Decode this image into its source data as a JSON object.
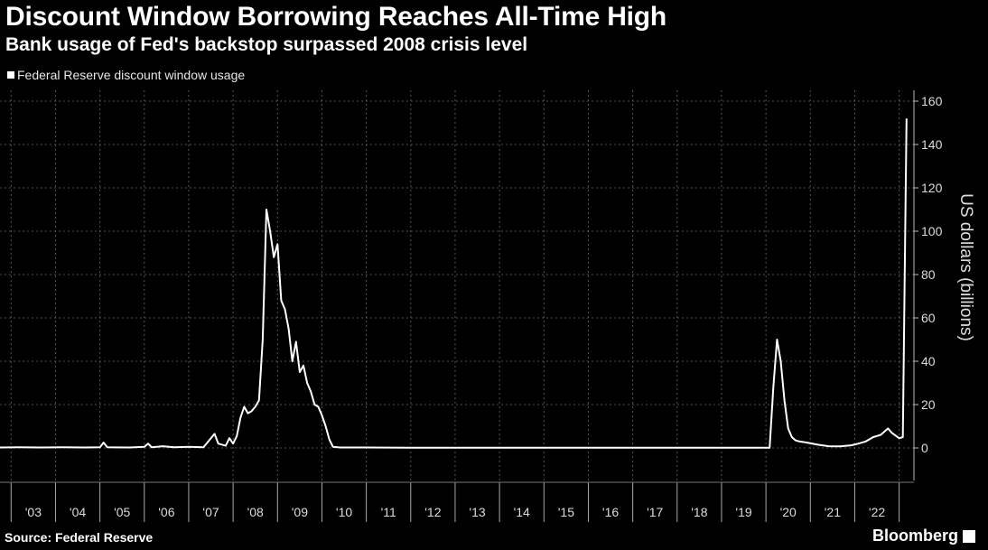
{
  "header": {
    "title": "Discount Window Borrowing Reaches All-Time High",
    "subtitle": "Bank usage of Fed's backstop surpassed 2008 crisis level"
  },
  "footer": {
    "source": "Source: Federal Reserve",
    "brand": "Bloomberg"
  },
  "chart_data": {
    "type": "line",
    "title": "Discount Window Borrowing Reaches All-Time High",
    "subtitle": "Bank usage of Fed's backstop surpassed 2008 crisis level",
    "ylabel": "US dollars (billions)",
    "xlabel": "",
    "ylim": [
      -15,
      165
    ],
    "xlim": [
      "2002-10",
      "2023-05"
    ],
    "yticks": [
      0,
      20,
      40,
      60,
      80,
      100,
      120,
      140,
      160
    ],
    "xtick_labels": [
      "'03",
      "'04",
      "'05",
      "'06",
      "'07",
      "'08",
      "'09",
      "'10",
      "'11",
      "'12",
      "'13",
      "'14",
      "'15",
      "'16",
      "'17",
      "'18",
      "'19",
      "'20",
      "'21",
      "'22"
    ],
    "xtick_years": [
      2003,
      2004,
      2005,
      2006,
      2007,
      2008,
      2009,
      2010,
      2011,
      2012,
      2013,
      2014,
      2015,
      2016,
      2017,
      2018,
      2019,
      2020,
      2021,
      2022
    ],
    "grid": true,
    "legend_position": "top-left",
    "colors": {
      "line": "#ffffff",
      "background": "#000000",
      "grid": "#555555"
    },
    "series": [
      {
        "name": "Federal Reserve discount window usage",
        "points": [
          [
            "2002-10",
            0.2
          ],
          [
            "2003-03",
            0.3
          ],
          [
            "2003-09",
            0.2
          ],
          [
            "2004-03",
            0.3
          ],
          [
            "2004-09",
            0.2
          ],
          [
            "2005-01",
            0.3
          ],
          [
            "2005-02",
            2.5
          ],
          [
            "2005-03",
            0.3
          ],
          [
            "2005-09",
            0.2
          ],
          [
            "2006-01",
            0.5
          ],
          [
            "2006-02",
            2.0
          ],
          [
            "2006-03",
            0.3
          ],
          [
            "2006-06",
            0.8
          ],
          [
            "2006-09",
            0.3
          ],
          [
            "2007-01",
            0.5
          ],
          [
            "2007-05",
            0.3
          ],
          [
            "2007-08",
            6.5
          ],
          [
            "2007-09",
            2.0
          ],
          [
            "2007-11",
            1.0
          ],
          [
            "2007-12",
            4.5
          ],
          [
            "2008-01",
            2.0
          ],
          [
            "2008-02",
            5.5
          ],
          [
            "2008-03",
            14.0
          ],
          [
            "2008-04",
            19.0
          ],
          [
            "2008-05",
            16.0
          ],
          [
            "2008-06",
            17.0
          ],
          [
            "2008-07",
            19.0
          ],
          [
            "2008-08",
            22.0
          ],
          [
            "2008-09",
            50.0
          ],
          [
            "2008-10",
            110.0
          ],
          [
            "2008-11",
            100.0
          ],
          [
            "2008-12",
            88.0
          ],
          [
            "2009-01",
            94.0
          ],
          [
            "2009-02",
            68.0
          ],
          [
            "2009-03",
            64.0
          ],
          [
            "2009-04",
            55.0
          ],
          [
            "2009-05",
            40.0
          ],
          [
            "2009-06",
            49.0
          ],
          [
            "2009-07",
            35.0
          ],
          [
            "2009-08",
            38.0
          ],
          [
            "2009-09",
            30.0
          ],
          [
            "2009-10",
            26.0
          ],
          [
            "2009-11",
            20.0
          ],
          [
            "2009-12",
            19.0
          ],
          [
            "2010-01",
            15.0
          ],
          [
            "2010-02",
            10.0
          ],
          [
            "2010-03",
            4.0
          ],
          [
            "2010-04",
            0.5
          ],
          [
            "2010-06",
            0.2
          ],
          [
            "2011-01",
            0.2
          ],
          [
            "2012-01",
            0.1
          ],
          [
            "2013-01",
            0.1
          ],
          [
            "2014-01",
            0.1
          ],
          [
            "2015-01",
            0.1
          ],
          [
            "2016-01",
            0.1
          ],
          [
            "2017-01",
            0.1
          ],
          [
            "2018-01",
            0.1
          ],
          [
            "2019-01",
            0.1
          ],
          [
            "2020-02",
            0.1
          ],
          [
            "2020-03",
            28.0
          ],
          [
            "2020-04",
            50.0
          ],
          [
            "2020-05",
            40.0
          ],
          [
            "2020-06",
            22.0
          ],
          [
            "2020-07",
            9.0
          ],
          [
            "2020-08",
            5.0
          ],
          [
            "2020-09",
            3.5
          ],
          [
            "2020-10",
            3.0
          ],
          [
            "2020-12",
            2.5
          ],
          [
            "2021-03",
            1.5
          ],
          [
            "2021-06",
            0.8
          ],
          [
            "2021-09",
            0.7
          ],
          [
            "2021-12",
            1.2
          ],
          [
            "2022-02",
            2.0
          ],
          [
            "2022-04",
            3.0
          ],
          [
            "2022-06",
            5.0
          ],
          [
            "2022-08",
            6.0
          ],
          [
            "2022-10",
            9.0
          ],
          [
            "2022-11",
            7.0
          ],
          [
            "2023-01",
            4.5
          ],
          [
            "2023-02",
            5.0
          ],
          [
            "2023-03",
            152.0
          ]
        ]
      }
    ]
  }
}
